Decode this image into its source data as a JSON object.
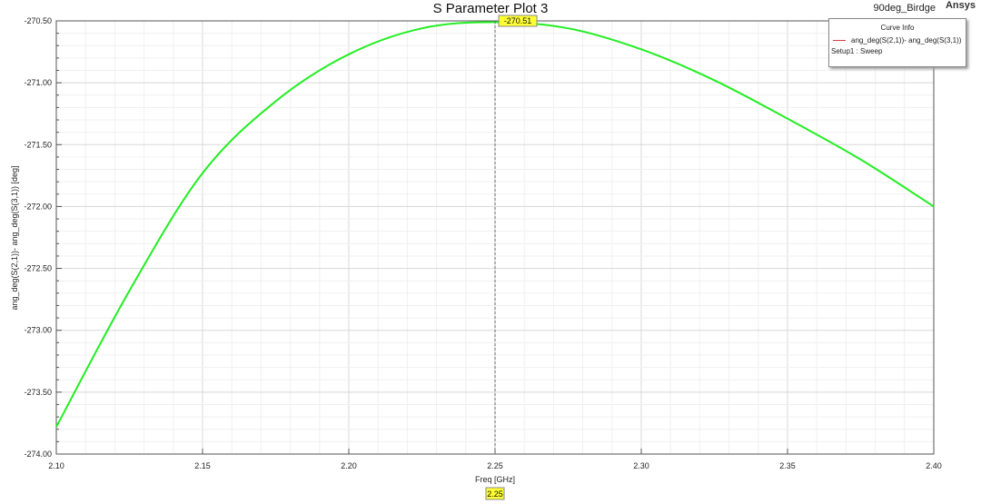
{
  "header": {
    "title": "S Parameter Plot 3",
    "project": "90deg_Birdge",
    "brand": "Ansys"
  },
  "legend": {
    "title": "Curve Info",
    "entries": [
      {
        "label": "ang_deg(S(2,1))- ang_deg(S(3,1))",
        "color": "#d04040"
      }
    ],
    "setup": "Setup1 : Sweep"
  },
  "chart_data": {
    "type": "line",
    "title": "S Parameter Plot 3",
    "xlabel": "Freq [GHz]",
    "ylabel": "ang_deg(S(2,1))- ang_deg(S(3,1)) [deg]",
    "xlim": [
      2.1,
      2.4
    ],
    "ylim": [
      -274.0,
      -270.5
    ],
    "xticks": [
      "2.10",
      "2.15",
      "2.20",
      "2.25",
      "2.30",
      "2.35",
      "2.40"
    ],
    "yticks": [
      "-270.50",
      "-271.00",
      "-271.50",
      "-272.00",
      "-272.50",
      "-273.00",
      "-273.50",
      "-274.00"
    ],
    "grid": true,
    "series": [
      {
        "name": "ang_deg(S(2,1))- ang_deg(S(3,1))",
        "color": "#22ee22",
        "x": [
          2.1,
          2.125,
          2.15,
          2.175,
          2.2,
          2.225,
          2.25,
          2.275,
          2.3,
          2.325,
          2.35,
          2.375,
          2.4
        ],
        "y": [
          -273.78,
          -272.68,
          -271.73,
          -271.15,
          -270.77,
          -270.56,
          -270.51,
          -270.56,
          -270.73,
          -270.98,
          -271.29,
          -271.62,
          -272.0
        ]
      }
    ],
    "markers": {
      "x_label": "2.25",
      "y_label": "-270.51",
      "marker_color": "#ffff33"
    }
  }
}
